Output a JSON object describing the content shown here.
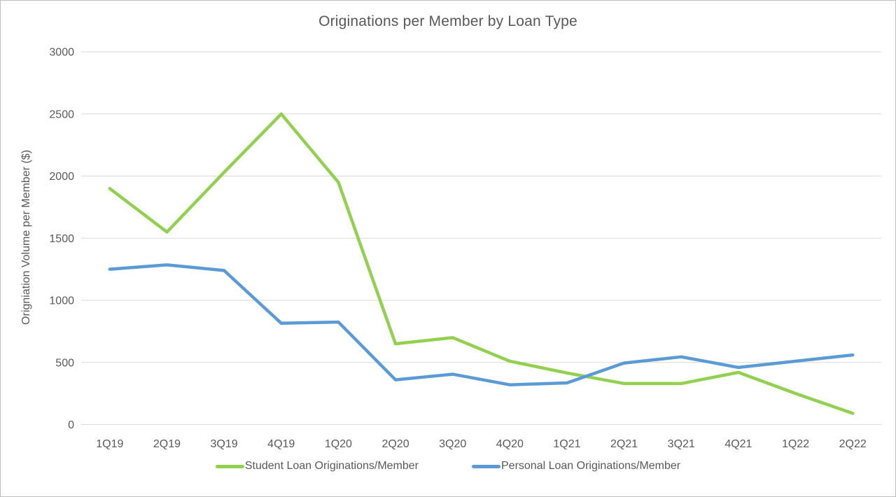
{
  "chart_data": {
    "type": "line",
    "title": "Originations per Member by Loan Type",
    "ylabel": "Origniation Volume per Member ($)",
    "xlabel": "",
    "categories": [
      "1Q19",
      "2Q19",
      "3Q19",
      "4Q19",
      "1Q20",
      "2Q20",
      "3Q20",
      "4Q20",
      "1Q21",
      "2Q21",
      "3Q21",
      "4Q21",
      "1Q22",
      "2Q22"
    ],
    "series": [
      {
        "name": "Student Loan Originations/Member",
        "color": "#92d050",
        "values": [
          1900,
          1550,
          2030,
          2500,
          1950,
          650,
          700,
          510,
          415,
          330,
          330,
          420,
          250,
          90
        ]
      },
      {
        "name": "Personal Loan Originations/Member",
        "color": "#5b9bd5",
        "values": [
          1250,
          1285,
          1240,
          815,
          825,
          360,
          405,
          320,
          335,
          495,
          545,
          460,
          510,
          560
        ]
      }
    ],
    "ylim": [
      0,
      3000
    ],
    "ytick_step": 500,
    "grid": "horizontal",
    "legend_position": "bottom",
    "text_color": "#595959",
    "gridline_color": "#d9d9d9",
    "line_width": 4.5
  }
}
